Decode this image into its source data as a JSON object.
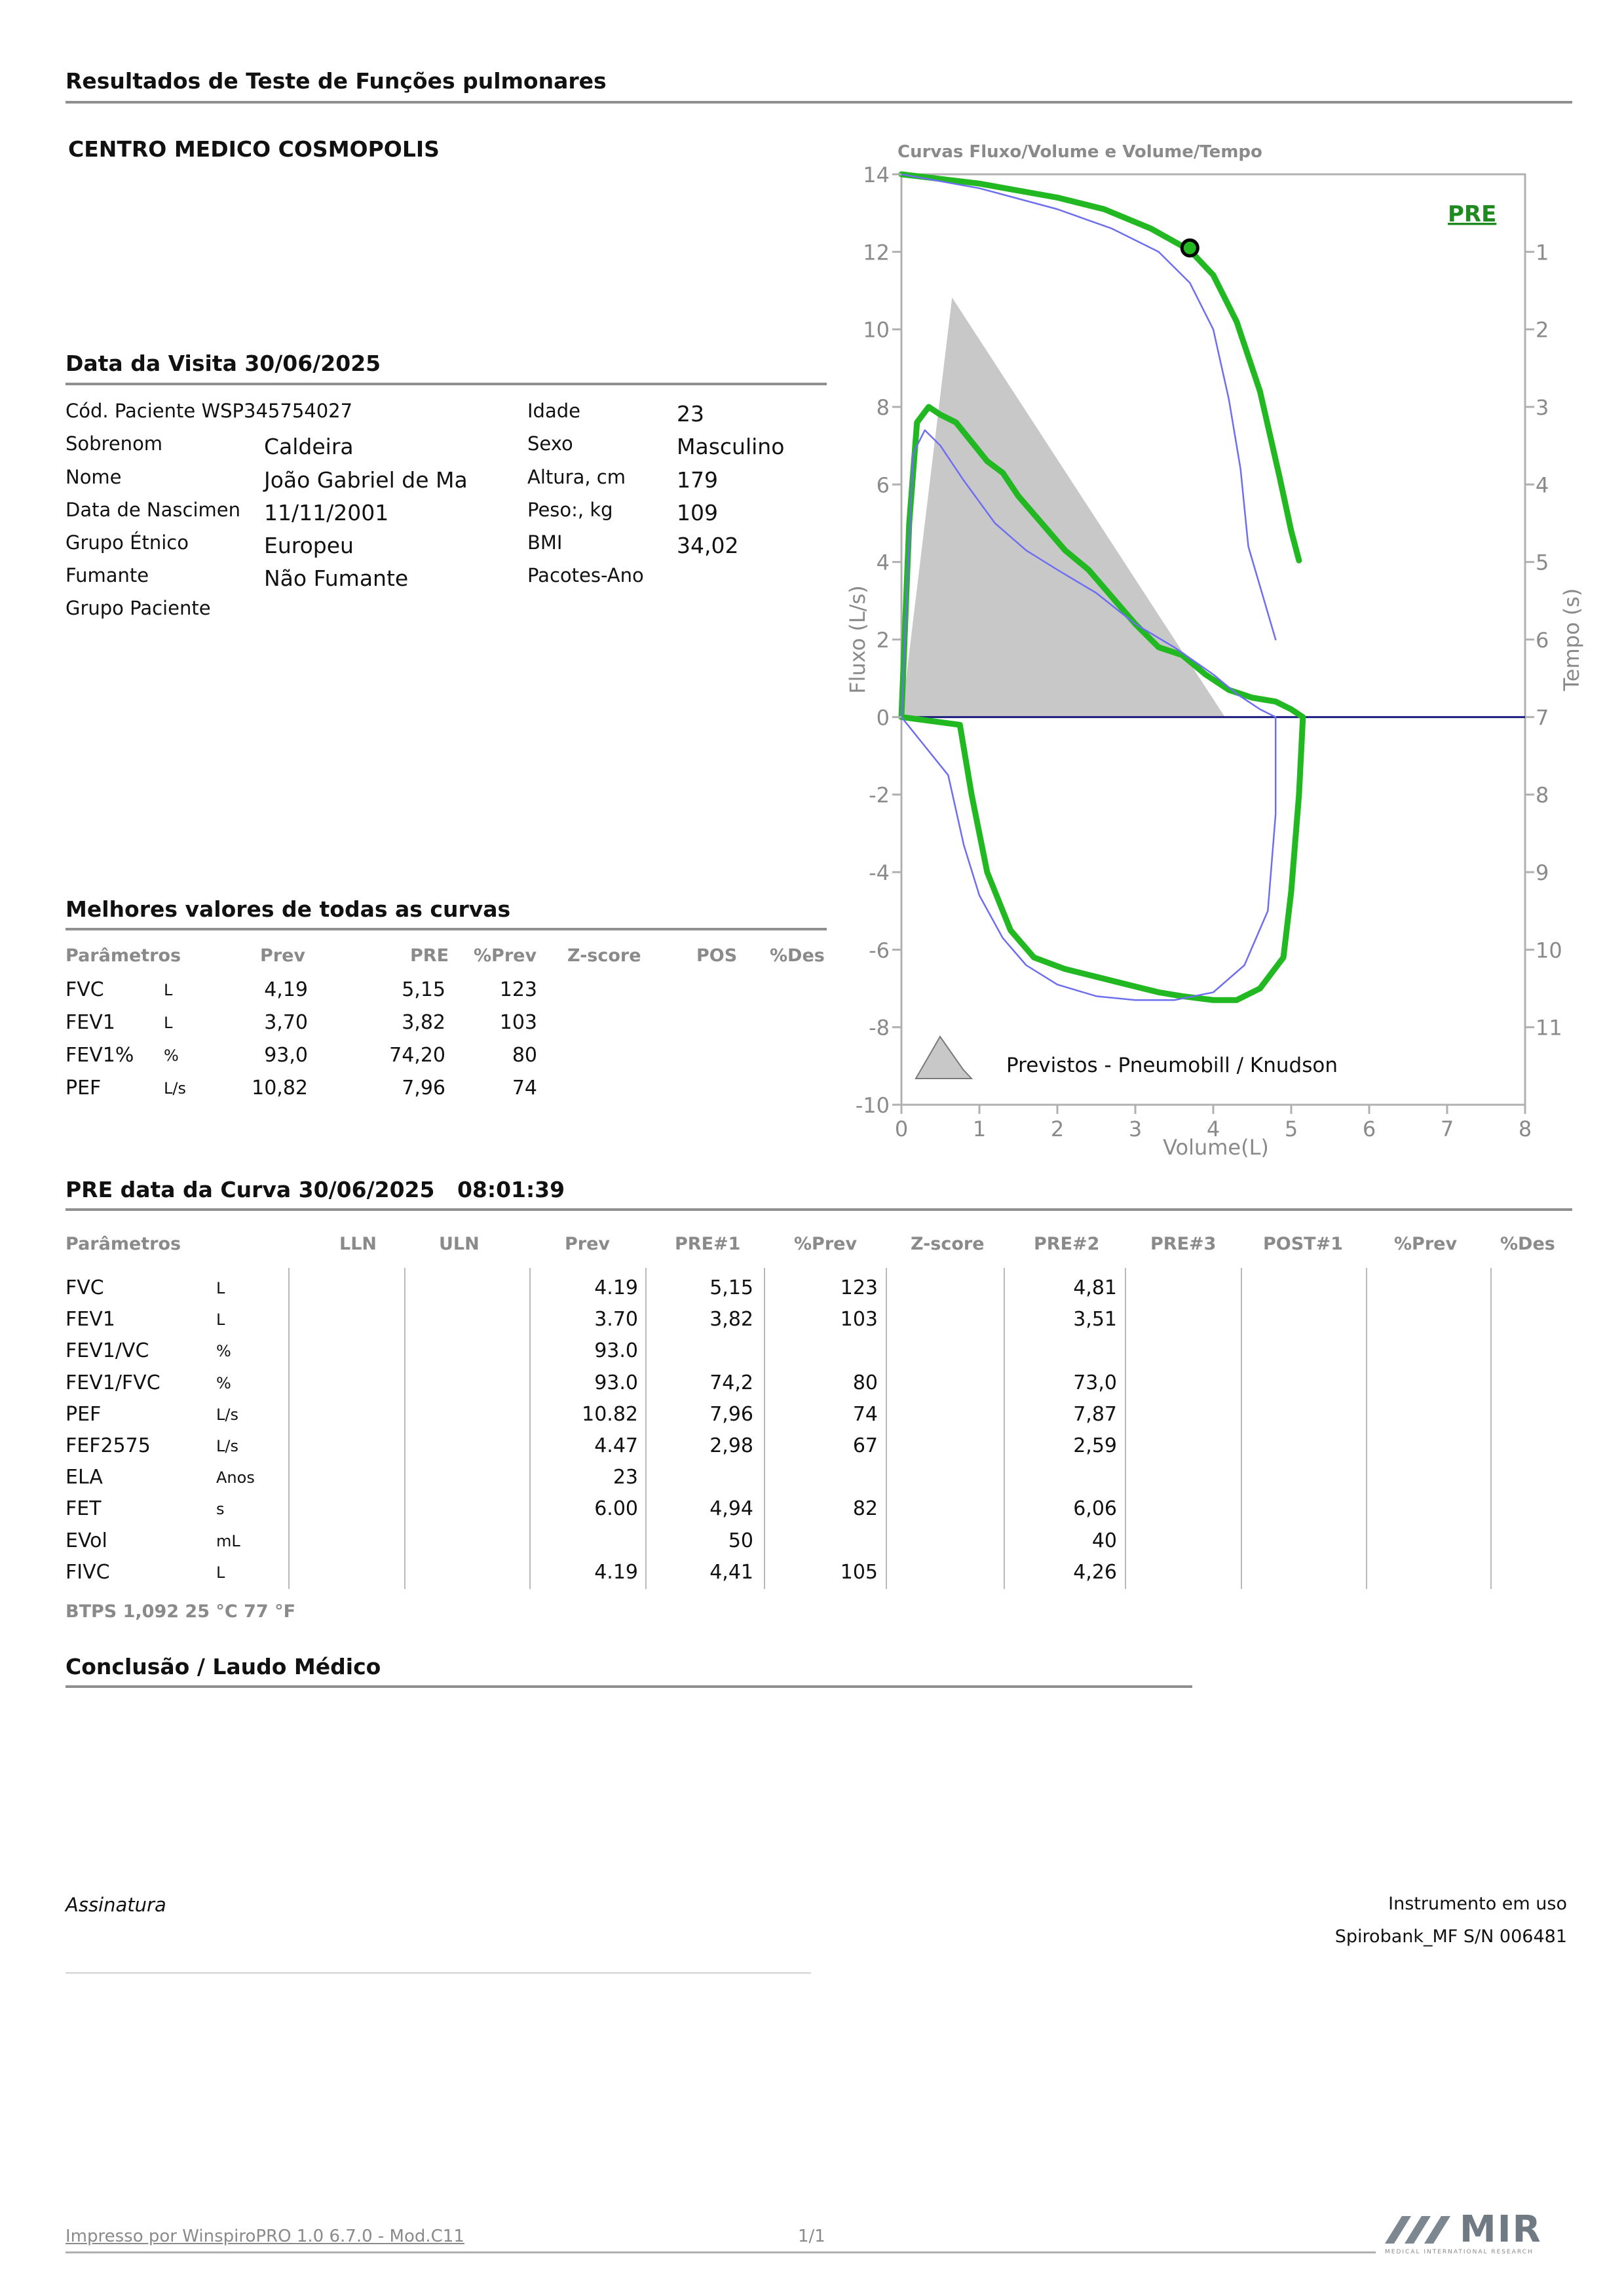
{
  "report": {
    "title": "Resultados de Teste de Funções pulmonares",
    "center": "CENTRO MEDICO COSMOPOLIS"
  },
  "visit": {
    "heading": "Data da Visita 30/06/2025",
    "left": [
      {
        "label": "Cód. Paciente WSP345754027",
        "value": ""
      },
      {
        "label": "Sobrenom",
        "value": "Caldeira"
      },
      {
        "label": "Nome",
        "value": "João Gabriel de Ma"
      },
      {
        "label": "Data de Nascimen",
        "value": "11/11/2001"
      },
      {
        "label": "Grupo Étnico",
        "value": "Europeu"
      },
      {
        "label": "Fumante",
        "value": "Não Fumante"
      },
      {
        "label": "Grupo Paciente",
        "value": ""
      }
    ],
    "right": [
      {
        "label": "Idade",
        "value": "23"
      },
      {
        "label": "Sexo",
        "value": "Masculino"
      },
      {
        "label": "Altura, cm",
        "value": "179"
      },
      {
        "label": "Peso:, kg",
        "value": "109"
      },
      {
        "label": "BMI",
        "value": "34,02"
      },
      {
        "label": "Pacotes-Ano",
        "value": ""
      }
    ]
  },
  "best": {
    "heading": "Melhores valores de todas as curvas",
    "headers": [
      "Parâmetros",
      "Prev",
      "PRE",
      "%Prev",
      "Z-score",
      "POS",
      "%Des"
    ],
    "rows": [
      {
        "param": "FVC",
        "unit": "L",
        "prev": "4,19",
        "pre": "5,15",
        "pprev": "123"
      },
      {
        "param": "FEV1",
        "unit": "L",
        "prev": "3,70",
        "pre": "3,82",
        "pprev": "103"
      },
      {
        "param": "FEV1%",
        "unit": "%",
        "prev": "93,0",
        "pre": "74,20",
        "pprev": "80"
      },
      {
        "param": "PEF",
        "unit": "L/s",
        "prev": "10,82",
        "pre": "7,96",
        "pprev": "74"
      }
    ]
  },
  "curve": {
    "heading": "PRE data da Curva 30/06/2025   08:01:39",
    "headers": [
      "Parâmetros",
      "LLN",
      "ULN",
      "Prev",
      "PRE#1",
      "%Prev",
      "Z-score",
      "PRE#2",
      "PRE#3",
      "POST#1",
      "%Prev",
      "%Des"
    ],
    "rows": [
      {
        "param": "FVC",
        "unit": "L",
        "prev": "4.19",
        "pre1": "5,15",
        "pprev": "123",
        "pre2": "4,81"
      },
      {
        "param": "FEV1",
        "unit": "L",
        "prev": "3.70",
        "pre1": "3,82",
        "pprev": "103",
        "pre2": "3,51"
      },
      {
        "param": "FEV1/VC",
        "unit": "%",
        "prev": "93.0",
        "pre1": "",
        "pprev": "",
        "pre2": ""
      },
      {
        "param": "FEV1/FVC",
        "unit": "%",
        "prev": "93.0",
        "pre1": "74,2",
        "pprev": "80",
        "pre2": "73,0"
      },
      {
        "param": "PEF",
        "unit": "L/s",
        "prev": "10.82",
        "pre1": "7,96",
        "pprev": "74",
        "pre2": "7,87"
      },
      {
        "param": "FEF2575",
        "unit": "L/s",
        "prev": "4.47",
        "pre1": "2,98",
        "pprev": "67",
        "pre2": "2,59"
      },
      {
        "param": "ELA",
        "unit": "Anos",
        "prev": "23",
        "pre1": "",
        "pprev": "",
        "pre2": ""
      },
      {
        "param": "FET",
        "unit": "s",
        "prev": "6.00",
        "pre1": "4,94",
        "pprev": "82",
        "pre2": "6,06"
      },
      {
        "param": "EVol",
        "unit": "mL",
        "prev": "",
        "pre1": "50",
        "pprev": "",
        "pre2": "40"
      },
      {
        "param": "FIVC",
        "unit": "L",
        "prev": "4.19",
        "pre1": "4,41",
        "pprev": "105",
        "pre2": "4,26"
      }
    ],
    "btps": "BTPS  1,092  25 °C  77 °F"
  },
  "conclusion": {
    "heading": "Conclusão / Laudo Médico"
  },
  "signature": {
    "label": "Assinatura",
    "instrument_label": "Instrumento em uso",
    "instrument": "Spirobank_MF S/N 006481"
  },
  "footer": {
    "printed_by": "Impresso por WinspiroPRO 1.0 6.7.0 - Mod.C11",
    "page": "1/1",
    "logo_text": "MIR",
    "logo_subtext": "MEDICAL INTERNATIONAL RESEARCH"
  },
  "colors": {
    "pre_curve": "#22b822",
    "predicted_curve": "#6e6ef0",
    "predicted_area": "#c8c8c8",
    "zero_line": "#1c1c80"
  },
  "chart_data": {
    "type": "line",
    "title": "Curvas Fluxo/Volume e Volume/Tempo",
    "xlabel": "Volume(L)",
    "ylabel": "Fluxo (L/s)",
    "y2label": "Tempo (s)",
    "xlim": [
      0,
      8
    ],
    "ylim": [
      -10,
      14
    ],
    "y2lim": [
      0,
      11
    ],
    "x_ticks": [
      "0",
      "1",
      "2",
      "3",
      "4",
      "5",
      "6",
      "7",
      "8"
    ],
    "y_ticks": [
      "14",
      "12",
      "10",
      "8",
      "6",
      "4",
      "2",
      "0",
      "-2",
      "-4",
      "-6",
      "-8",
      "-10"
    ],
    "y2_ticks": [
      "1",
      "2",
      "3",
      "4",
      "5",
      "6",
      "7",
      "8",
      "9",
      "10",
      "11"
    ],
    "grid": false,
    "legend_label": "PRE",
    "predicted_label": "Previstos - Pneumobill / Knudson",
    "series": [
      {
        "name": "PRE",
        "role": "flow-volume",
        "x": [
          0,
          0.1,
          0.2,
          0.35,
          0.5,
          0.7,
          0.9,
          1.1,
          1.3,
          1.5,
          1.8,
          2.1,
          2.4,
          2.7,
          3.0,
          3.3,
          3.6,
          3.9,
          4.2,
          4.5,
          4.8,
          5.0,
          5.15,
          5.1,
          5.0,
          4.9,
          4.6,
          4.3,
          4.0,
          3.6,
          3.3,
          2.9,
          2.5,
          2.1,
          1.7,
          1.4,
          1.1,
          0.9,
          0.75,
          0
        ],
        "y": [
          0,
          5.0,
          7.6,
          8.0,
          7.8,
          7.6,
          7.1,
          6.6,
          6.3,
          5.7,
          5.0,
          4.3,
          3.8,
          3.1,
          2.4,
          1.8,
          1.6,
          1.1,
          0.7,
          0.5,
          0.4,
          0.2,
          0,
          -2.0,
          -4.5,
          -6.2,
          -7.0,
          -7.3,
          -7.3,
          -7.2,
          -7.1,
          -6.9,
          -6.7,
          -6.5,
          -6.2,
          -5.5,
          -4.0,
          -2.0,
          -0.2,
          0
        ]
      },
      {
        "name": "PRE",
        "role": "volume-time",
        "x": [
          0,
          1,
          2,
          2.6,
          3.2,
          3.7,
          4.0,
          4.3,
          4.6,
          4.85,
          5.0,
          5.1
        ],
        "y": [
          0.0,
          0.12,
          0.3,
          0.45,
          0.7,
          0.98,
          1.3,
          1.9,
          2.8,
          3.9,
          4.6,
          4.98
        ]
      },
      {
        "name": "Prev",
        "role": "flow-volume",
        "x": [
          0,
          0.15,
          0.3,
          0.5,
          0.8,
          1.2,
          1.6,
          2.0,
          2.5,
          3.0,
          3.5,
          4.0,
          4.3,
          4.6,
          4.8,
          4.8,
          4.7,
          4.4,
          4.0,
          3.5,
          3.0,
          2.5,
          2.0,
          1.6,
          1.3,
          1.0,
          0.8,
          0.6,
          0
        ],
        "y": [
          0,
          6.8,
          7.4,
          7.0,
          6.1,
          5.0,
          4.3,
          3.8,
          3.2,
          2.4,
          1.8,
          1.1,
          0.6,
          0.2,
          0,
          -2.5,
          -5.0,
          -6.4,
          -7.1,
          -7.3,
          -7.3,
          -7.2,
          -6.9,
          -6.4,
          -5.7,
          -4.6,
          -3.3,
          -1.5,
          0
        ]
      },
      {
        "name": "Prev",
        "role": "volume-time",
        "x": [
          0,
          1,
          2,
          2.7,
          3.3,
          3.7,
          4.0,
          4.2,
          4.35,
          4.45,
          4.8
        ],
        "y": [
          0.0,
          0.18,
          0.45,
          0.7,
          1.0,
          1.4,
          2.0,
          2.9,
          3.8,
          4.8,
          6.0
        ]
      },
      {
        "name": "Previstos - Pneumobill / Knudson",
        "role": "predicted-area",
        "x": [
          0,
          0.65,
          4.15
        ],
        "y": [
          0,
          10.82,
          0
        ]
      }
    ],
    "marker": {
      "x": 3.7,
      "y": 12.1
    }
  }
}
